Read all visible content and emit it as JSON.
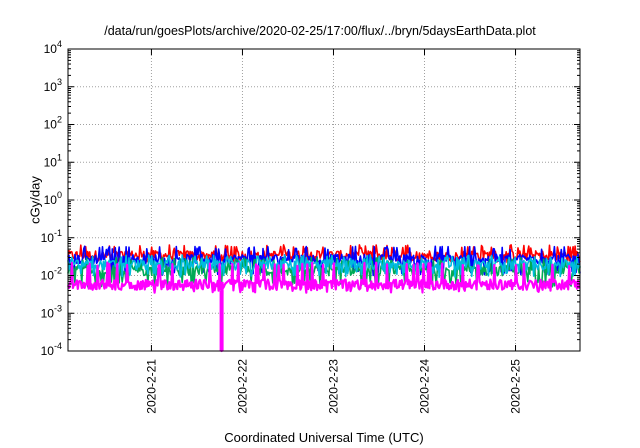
{
  "chart_data": {
    "type": "line",
    "title": "/data/run/goesPlots/archive/2020-02-25/17:00/flux/../bryn/5daysEarthData.plot",
    "xlabel": "Coordinated Universal Time (UTC)",
    "ylabel": "cGy/day",
    "yscale": "log",
    "ylim": [
      0.0001,
      10000
    ],
    "yticks": [
      {
        "value": 0.0001,
        "base": "10",
        "exp": "-4"
      },
      {
        "value": 0.001,
        "base": "10",
        "exp": "-3"
      },
      {
        "value": 0.01,
        "base": "10",
        "exp": "-2"
      },
      {
        "value": 0.1,
        "base": "10",
        "exp": "-1"
      },
      {
        "value": 1,
        "base": "10",
        "exp": "0"
      },
      {
        "value": 10,
        "base": "10",
        "exp": "1"
      },
      {
        "value": 100,
        "base": "10",
        "exp": "2"
      },
      {
        "value": 1000,
        "base": "10",
        "exp": "3"
      },
      {
        "value": 10000,
        "base": "10",
        "exp": "4"
      }
    ],
    "xlim": [
      "2020-02-20T02:00",
      "2020-02-25T17:00"
    ],
    "xticks": [
      {
        "value": "2020-02-21T00:00",
        "label": "2020-2-21"
      },
      {
        "value": "2020-02-22T00:00",
        "label": "2020-2-22"
      },
      {
        "value": "2020-02-23T00:00",
        "label": "2020-2-23"
      },
      {
        "value": "2020-02-24T00:00",
        "label": "2020-2-24"
      },
      {
        "value": "2020-02-25T00:00",
        "label": "2020-2-25"
      }
    ],
    "grid": true,
    "legend": "none",
    "dip": {
      "x": "2020-02-21T18:30",
      "y": 0.0001
    },
    "series": [
      {
        "color": "#ff0000",
        "level": 0.035,
        "low": 0.022,
        "high": 0.065
      },
      {
        "color": "#0000ff",
        "level": 0.028,
        "low": 0.01,
        "high": 0.06
      },
      {
        "color": "#00aa55",
        "level": 0.014,
        "low": 0.005,
        "high": 0.03
      },
      {
        "color": "#00bbdd",
        "level": 0.02,
        "low": 0.009,
        "high": 0.035
      },
      {
        "color": "#ff00ff",
        "level": 0.006,
        "low": 0.0035,
        "high": 0.022
      }
    ]
  }
}
